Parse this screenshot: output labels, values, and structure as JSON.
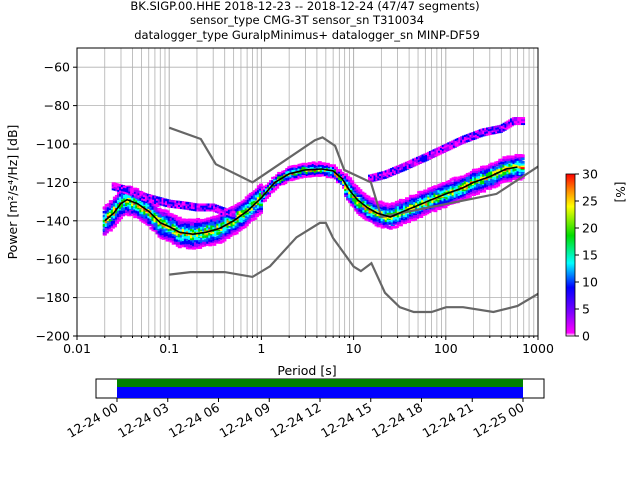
{
  "header": {
    "line1": "BK.SIGP.00.HHE   2018-12-23 -- 2018-12-24  (47/47 segments)",
    "line2": "sensor_type CMG-3T sensor_sn T310034",
    "line3": "datalogger_type GuralpMinimus+ datalogger_sn MINP-DF59"
  },
  "chart_data": [
    {
      "type": "heatmap",
      "xlabel": "Period [s]",
      "ylabel": "Power [m²/s⁴/Hz] [dB]",
      "x_scale": "log",
      "xlim": [
        0.01,
        1000
      ],
      "ylim": [
        -200,
        -50
      ],
      "x_ticks": [
        {
          "v": 0.01,
          "label": "0.01"
        },
        {
          "v": 0.1,
          "label": "0.1"
        },
        {
          "v": 1,
          "label": "1"
        },
        {
          "v": 10,
          "label": "10"
        },
        {
          "v": 100,
          "label": "100"
        },
        {
          "v": 1000,
          "label": "1000"
        }
      ],
      "y_ticks": [
        -200,
        -180,
        -160,
        -140,
        -120,
        -100,
        -80,
        -60
      ],
      "grid": true,
      "colorbar": {
        "label": "[%]",
        "range": [
          0,
          30
        ],
        "ticks": [
          0,
          5,
          10,
          15,
          20,
          25,
          30
        ],
        "colormap": "pqlx"
      },
      "noise_models": [
        {
          "name": "NHNM",
          "color": "#666666",
          "points": [
            [
              0.1,
              -91.5
            ],
            [
              0.22,
              -97.4
            ],
            [
              0.32,
              -110.5
            ],
            [
              0.8,
              -120
            ],
            [
              3.8,
              -98
            ],
            [
              4.6,
              -96.5
            ],
            [
              6.3,
              -101
            ],
            [
              7.9,
              -113.5
            ],
            [
              15.4,
              -120
            ],
            [
              20,
              -138
            ],
            [
              354.8,
              -126
            ],
            [
              10000,
              -80.1
            ]
          ]
        },
        {
          "name": "NLNM",
          "color": "#666666",
          "points": [
            [
              0.1,
              -168
            ],
            [
              0.17,
              -166.7
            ],
            [
              0.4,
              -166.7
            ],
            [
              0.8,
              -169.2
            ],
            [
              1.24,
              -163.7
            ],
            [
              2.4,
              -148.6
            ],
            [
              4.3,
              -141.1
            ],
            [
              5,
              -141.1
            ],
            [
              6,
              -149
            ],
            [
              10,
              -163.8
            ],
            [
              12,
              -166.2
            ],
            [
              15.6,
              -162.1
            ],
            [
              21.9,
              -177.5
            ],
            [
              31.6,
              -185
            ],
            [
              45,
              -187.5
            ],
            [
              70,
              -187.5
            ],
            [
              101,
              -185
            ],
            [
              154,
              -185
            ],
            [
              328,
              -187.5
            ],
            [
              600,
              -184.4
            ],
            [
              1000,
              -178
            ]
          ]
        },
        {
          "name": "mode",
          "color": "#000000",
          "points": [
            [
              0.02,
              -140
            ],
            [
              0.025,
              -136
            ],
            [
              0.03,
              -131
            ],
            [
              0.035,
              -129
            ],
            [
              0.045,
              -131
            ],
            [
              0.06,
              -135
            ],
            [
              0.08,
              -141
            ],
            [
              0.1,
              -143
            ],
            [
              0.13,
              -146
            ],
            [
              0.18,
              -147
            ],
            [
              0.25,
              -146
            ],
            [
              0.35,
              -144
            ],
            [
              0.5,
              -140
            ],
            [
              0.7,
              -135
            ],
            [
              1,
              -128
            ],
            [
              1.4,
              -120
            ],
            [
              2,
              -115.5
            ],
            [
              3,
              -113.5
            ],
            [
              4.5,
              -113
            ],
            [
              6,
              -114
            ],
            [
              7.5,
              -118
            ],
            [
              9,
              -124
            ],
            [
              11,
              -129
            ],
            [
              14,
              -133
            ],
            [
              18,
              -136
            ],
            [
              25,
              -138
            ],
            [
              35,
              -135
            ],
            [
              50,
              -132
            ],
            [
              70,
              -129
            ],
            [
              100,
              -126
            ],
            [
              150,
              -123
            ],
            [
              200,
              -120
            ],
            [
              300,
              -117
            ],
            [
              450,
              -113
            ],
            [
              600,
              -112
            ]
          ]
        }
      ],
      "density_upper_branch": [
        [
          0.025,
          -122
        ],
        [
          0.035,
          -124
        ],
        [
          0.05,
          -127
        ],
        [
          0.07,
          -129
        ],
        [
          0.1,
          -131
        ],
        [
          0.15,
          -132
        ],
        [
          0.2,
          -133
        ],
        [
          0.3,
          -133
        ],
        [
          0.5,
          -137
        ],
        [
          15,
          -118
        ],
        [
          22,
          -116
        ],
        [
          35,
          -112
        ],
        [
          60,
          -107
        ],
        [
          100,
          -102
        ],
        [
          150,
          -98
        ],
        [
          250,
          -94
        ],
        [
          400,
          -92
        ],
        [
          550,
          -88
        ],
        [
          700,
          -88
        ]
      ]
    },
    {
      "type": "timeline",
      "x_ticks": [
        "12-24 00",
        "12-24 03",
        "12-24 06",
        "12-24 09",
        "12-24 12",
        "12-24 15",
        "12-24 18",
        "12-24 21",
        "12-25 00"
      ],
      "coverage": [
        {
          "name": "data_available",
          "color": "#008000"
        },
        {
          "name": "psd_segments",
          "color": "#0000ff"
        }
      ]
    }
  ]
}
